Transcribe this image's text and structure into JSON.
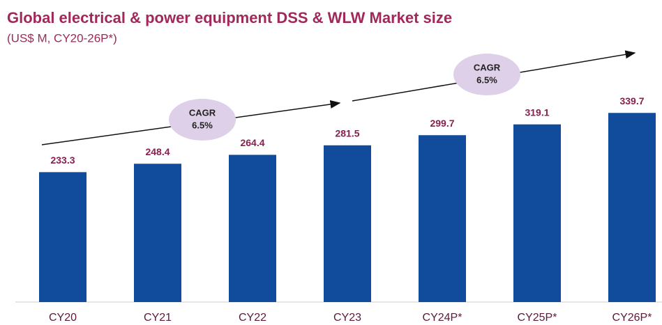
{
  "chart_data": {
    "type": "bar",
    "title": "Global electrical & power equipment DSS & WLW Market size",
    "subtitle": "(US$ M, CY20-26P*)",
    "categories": [
      "CY20",
      "CY21",
      "CY22",
      "CY23",
      "CY24P*",
      "CY25P*",
      "CY26P*"
    ],
    "values": [
      233.3,
      248.4,
      264.4,
      281.5,
      299.7,
      319.1,
      339.7
    ],
    "color": "#114c9c",
    "ylim": [
      0,
      400
    ],
    "annotations": [
      {
        "lines": [
          "CAGR",
          "6.5%"
        ]
      },
      {
        "lines": [
          "CAGR",
          "6.5%"
        ]
      }
    ]
  }
}
